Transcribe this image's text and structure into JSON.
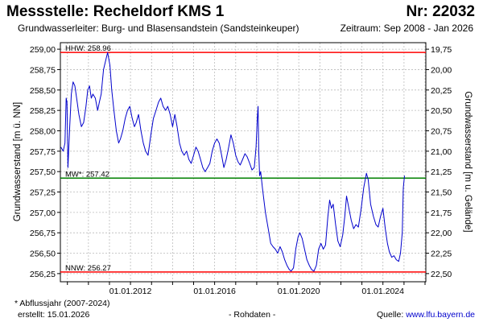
{
  "header": {
    "title": "Messstelle: Recheldorf KMS 1",
    "number": "Nr: 22032",
    "aquifer": "Grundwasserleiter:  Burg- und Blasensandstein (Sandsteinkeuper)",
    "period": "Zeitraum: Sep 2008 - Jan 2026"
  },
  "footer": {
    "footnote": "* Abflussjahr (2007-2024)",
    "created": "erstellt:  15.01.2026",
    "rawdata": "- Rohdaten -",
    "source_label": "Quelle:",
    "source_url": "www.lfu.bayern.de"
  },
  "colors": {
    "series": "#0000cc",
    "hhw": "#ff0000",
    "nnw": "#ff0000",
    "mw": "#008000",
    "grid": "#bbbbbb"
  },
  "chart_data": {
    "type": "line",
    "title": "",
    "xlabel": "",
    "ylabel": "Grundwasserstand [m ü. NN]",
    "ylabel_right": "Grundwasserstand [m u. Gelände]",
    "xlim": [
      "2008-09-01",
      "2026-01-15"
    ],
    "ylim": [
      256.15,
      259.08
    ],
    "grid": true,
    "x_ticks": [
      "01.01.2012",
      "01.01.2016",
      "01.01.2020",
      "01.01.2024"
    ],
    "y_ticks_left": [
      "259,00",
      "258,75",
      "258,50",
      "258,25",
      "258,00",
      "257,75",
      "257,50",
      "257,25",
      "257,00",
      "256,75",
      "256,50",
      "256,25"
    ],
    "y_tick_values_left": [
      259.0,
      258.75,
      258.5,
      258.25,
      258.0,
      257.75,
      257.5,
      257.25,
      257.0,
      256.75,
      256.5,
      256.25
    ],
    "y_ticks_right": [
      "19,75",
      "20,00",
      "20,25",
      "20,50",
      "20,75",
      "21,00",
      "21,25",
      "21,50",
      "21,75",
      "22,00",
      "22,25",
      "22,50"
    ],
    "y_tick_values_right": [
      19.75,
      20.0,
      20.25,
      20.5,
      20.75,
      21.0,
      21.25,
      21.5,
      21.75,
      22.0,
      22.25,
      22.5
    ],
    "reference_lines": [
      {
        "key": "hhw",
        "label": "HHW: 258.96",
        "value": 258.96
      },
      {
        "key": "mw",
        "label": "MW*: 257.42",
        "value": 257.42
      },
      {
        "key": "nnw",
        "label": "NNW: 256.27",
        "value": 256.27
      }
    ],
    "series": [
      {
        "values": [
          [
            "2008-09-10",
            257.8
          ],
          [
            "2008-10-20",
            257.75
          ],
          [
            "2008-11-20",
            257.85
          ],
          [
            "2008-12-10",
            258.4
          ],
          [
            "2008-12-25",
            258.35
          ],
          [
            "2009-01-10",
            257.55
          ],
          [
            "2009-02-10",
            258.05
          ],
          [
            "2009-03-10",
            258.45
          ],
          [
            "2009-04-10",
            258.6
          ],
          [
            "2009-05-10",
            258.55
          ],
          [
            "2009-06-10",
            258.4
          ],
          [
            "2009-07-20",
            258.2
          ],
          [
            "2009-09-01",
            258.05
          ],
          [
            "2009-10-10",
            258.1
          ],
          [
            "2009-11-20",
            258.3
          ],
          [
            "2009-12-20",
            258.5
          ],
          [
            "2010-01-20",
            258.55
          ],
          [
            "2010-02-20",
            258.4
          ],
          [
            "2010-03-20",
            258.45
          ],
          [
            "2010-05-01",
            258.4
          ],
          [
            "2010-06-10",
            258.25
          ],
          [
            "2010-07-10",
            258.35
          ],
          [
            "2010-08-10",
            258.45
          ],
          [
            "2010-09-20",
            258.75
          ],
          [
            "2010-11-10",
            258.9
          ],
          [
            "2010-12-01",
            258.96
          ],
          [
            "2011-01-10",
            258.8
          ],
          [
            "2011-02-10",
            258.5
          ],
          [
            "2011-03-20",
            258.25
          ],
          [
            "2011-05-01",
            258.0
          ],
          [
            "2011-06-10",
            257.85
          ],
          [
            "2011-07-10",
            257.9
          ],
          [
            "2011-08-20",
            258.0
          ],
          [
            "2011-10-01",
            258.15
          ],
          [
            "2011-11-10",
            258.25
          ],
          [
            "2011-12-20",
            258.3
          ],
          [
            "2012-02-01",
            258.15
          ],
          [
            "2012-03-10",
            258.05
          ],
          [
            "2012-04-10",
            258.1
          ],
          [
            "2012-05-20",
            258.2
          ],
          [
            "2012-07-01",
            258.0
          ],
          [
            "2012-08-10",
            257.85
          ],
          [
            "2012-09-20",
            257.75
          ],
          [
            "2012-11-01",
            257.7
          ],
          [
            "2012-12-20",
            257.95
          ],
          [
            "2013-02-01",
            258.15
          ],
          [
            "2013-03-20",
            258.25
          ],
          [
            "2013-05-01",
            258.35
          ],
          [
            "2013-06-10",
            258.4
          ],
          [
            "2013-07-20",
            258.3
          ],
          [
            "2013-09-01",
            258.25
          ],
          [
            "2013-10-10",
            258.3
          ],
          [
            "2013-11-20",
            258.2
          ],
          [
            "2014-01-01",
            258.05
          ],
          [
            "2014-02-10",
            258.2
          ],
          [
            "2014-03-20",
            258.05
          ],
          [
            "2014-05-01",
            257.85
          ],
          [
            "2014-06-10",
            257.75
          ],
          [
            "2014-07-20",
            257.7
          ],
          [
            "2014-09-01",
            257.75
          ],
          [
            "2014-10-10",
            257.65
          ],
          [
            "2014-11-20",
            257.6
          ],
          [
            "2015-01-01",
            257.7
          ],
          [
            "2015-02-10",
            257.8
          ],
          [
            "2015-03-20",
            257.75
          ],
          [
            "2015-05-01",
            257.65
          ],
          [
            "2015-06-10",
            257.55
          ],
          [
            "2015-07-20",
            257.5
          ],
          [
            "2015-09-01",
            257.55
          ],
          [
            "2015-10-10",
            257.6
          ],
          [
            "2015-11-20",
            257.75
          ],
          [
            "2016-01-01",
            257.85
          ],
          [
            "2016-02-10",
            257.9
          ],
          [
            "2016-03-20",
            257.85
          ],
          [
            "2016-05-01",
            257.7
          ],
          [
            "2016-06-10",
            257.55
          ],
          [
            "2016-07-20",
            257.65
          ],
          [
            "2016-09-01",
            257.8
          ],
          [
            "2016-10-10",
            257.95
          ],
          [
            "2016-11-20",
            257.85
          ],
          [
            "2017-01-01",
            257.7
          ],
          [
            "2017-02-10",
            257.62
          ],
          [
            "2017-03-20",
            257.58
          ],
          [
            "2017-05-01",
            257.65
          ],
          [
            "2017-06-10",
            257.72
          ],
          [
            "2017-07-20",
            257.68
          ],
          [
            "2017-09-01",
            257.6
          ],
          [
            "2017-10-10",
            257.52
          ],
          [
            "2017-11-20",
            257.55
          ],
          [
            "2017-12-20",
            257.8
          ],
          [
            "2018-01-10",
            258.15
          ],
          [
            "2018-01-25",
            258.3
          ],
          [
            "2018-02-05",
            257.75
          ],
          [
            "2018-02-20",
            257.45
          ],
          [
            "2018-03-10",
            257.5
          ],
          [
            "2018-04-10",
            257.3
          ],
          [
            "2018-06-01",
            257.0
          ],
          [
            "2018-07-20",
            256.8
          ],
          [
            "2018-09-01",
            256.62
          ],
          [
            "2018-10-10",
            256.58
          ],
          [
            "2018-11-20",
            256.55
          ],
          [
            "2019-01-01",
            256.5
          ],
          [
            "2019-02-10",
            256.58
          ],
          [
            "2019-03-20",
            256.52
          ],
          [
            "2019-05-01",
            256.42
          ],
          [
            "2019-06-10",
            256.35
          ],
          [
            "2019-07-20",
            256.3
          ],
          [
            "2019-08-20",
            256.28
          ],
          [
            "2019-10-01",
            256.32
          ],
          [
            "2019-11-10",
            256.55
          ],
          [
            "2019-12-20",
            256.7
          ],
          [
            "2020-01-20",
            256.75
          ],
          [
            "2020-03-01",
            256.68
          ],
          [
            "2020-04-10",
            256.55
          ],
          [
            "2020-05-20",
            256.42
          ],
          [
            "2020-07-01",
            256.35
          ],
          [
            "2020-08-10",
            256.3
          ],
          [
            "2020-09-20",
            256.28
          ],
          [
            "2020-11-01",
            256.35
          ],
          [
            "2020-12-10",
            256.55
          ],
          [
            "2021-01-20",
            256.62
          ],
          [
            "2021-03-01",
            256.55
          ],
          [
            "2021-04-10",
            256.6
          ],
          [
            "2021-05-20",
            256.95
          ],
          [
            "2021-06-20",
            257.15
          ],
          [
            "2021-07-20",
            257.05
          ],
          [
            "2021-08-20",
            257.1
          ],
          [
            "2021-10-01",
            256.85
          ],
          [
            "2021-11-10",
            256.65
          ],
          [
            "2021-12-20",
            256.58
          ],
          [
            "2022-02-01",
            256.72
          ],
          [
            "2022-03-10",
            256.95
          ],
          [
            "2022-04-10",
            257.2
          ],
          [
            "2022-05-20",
            257.05
          ],
          [
            "2022-07-01",
            256.9
          ],
          [
            "2022-08-10",
            256.8
          ],
          [
            "2022-09-20",
            256.85
          ],
          [
            "2022-11-01",
            256.82
          ],
          [
            "2022-12-20",
            257.05
          ],
          [
            "2023-02-01",
            257.3
          ],
          [
            "2023-03-20",
            257.48
          ],
          [
            "2023-04-20",
            257.4
          ],
          [
            "2023-06-01",
            257.1
          ],
          [
            "2023-07-20",
            256.95
          ],
          [
            "2023-09-01",
            256.85
          ],
          [
            "2023-10-10",
            256.82
          ],
          [
            "2023-11-20",
            256.95
          ],
          [
            "2024-01-01",
            257.05
          ],
          [
            "2024-02-10",
            256.8
          ],
          [
            "2024-03-20",
            256.62
          ],
          [
            "2024-04-20",
            256.52
          ],
          [
            "2024-06-01",
            256.45
          ],
          [
            "2024-07-10",
            256.47
          ],
          [
            "2024-08-20",
            256.42
          ],
          [
            "2024-10-01",
            256.4
          ],
          [
            "2024-11-01",
            256.5
          ],
          [
            "2024-12-01",
            256.75
          ],
          [
            "2024-12-20",
            257.3
          ],
          [
            "2025-01-10",
            257.45
          ]
        ]
      }
    ]
  }
}
